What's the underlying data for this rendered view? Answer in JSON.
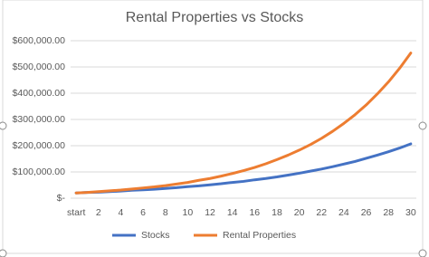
{
  "chart_data": {
    "type": "line",
    "title": "Rental Properties vs Stocks",
    "categories": [
      "start",
      null,
      "2",
      null,
      "4",
      null,
      "6",
      null,
      "8",
      null,
      "10",
      null,
      "12",
      null,
      "14",
      null,
      "16",
      null,
      "18",
      null,
      "20",
      null,
      "22",
      null,
      "24",
      null,
      "26",
      null,
      "28",
      null,
      "30"
    ],
    "series": [
      {
        "name": "Stocks",
        "color": "#4472c4",
        "values": [
          20000,
          22000,
          23000,
          25000,
          27000,
          30000,
          32000,
          34000,
          37000,
          40000,
          44000,
          47000,
          51000,
          55000,
          60000,
          64000,
          70000,
          75000,
          81000,
          88000,
          95000,
          103000,
          111000,
          120000,
          130000,
          140000,
          152000,
          164000,
          177000,
          191000,
          207000
        ]
      },
      {
        "name": "Rental Properties",
        "color": "#ed7d31",
        "values": [
          20000,
          22000,
          25000,
          28000,
          31000,
          35000,
          39000,
          43000,
          48000,
          54000,
          60000,
          68000,
          75000,
          84000,
          94000,
          105000,
          117000,
          131000,
          147000,
          164000,
          183000,
          204000,
          228000,
          255000,
          285000,
          318000,
          355000,
          397000,
          443000,
          495000,
          553000
        ]
      }
    ],
    "ylim": [
      0,
      600000
    ],
    "yticks": [
      {
        "value": 0,
        "label": "$-"
      },
      {
        "value": 100000,
        "label": "$100,000.00"
      },
      {
        "value": 200000,
        "label": "$200,000.00"
      },
      {
        "value": 300000,
        "label": "$300,000.00"
      },
      {
        "value": 400000,
        "label": "$400,000.00"
      },
      {
        "value": 500000,
        "label": "$500,000.00"
      },
      {
        "value": 600000,
        "label": "$600,000.00"
      }
    ],
    "grid": true,
    "legend": "bottom"
  }
}
